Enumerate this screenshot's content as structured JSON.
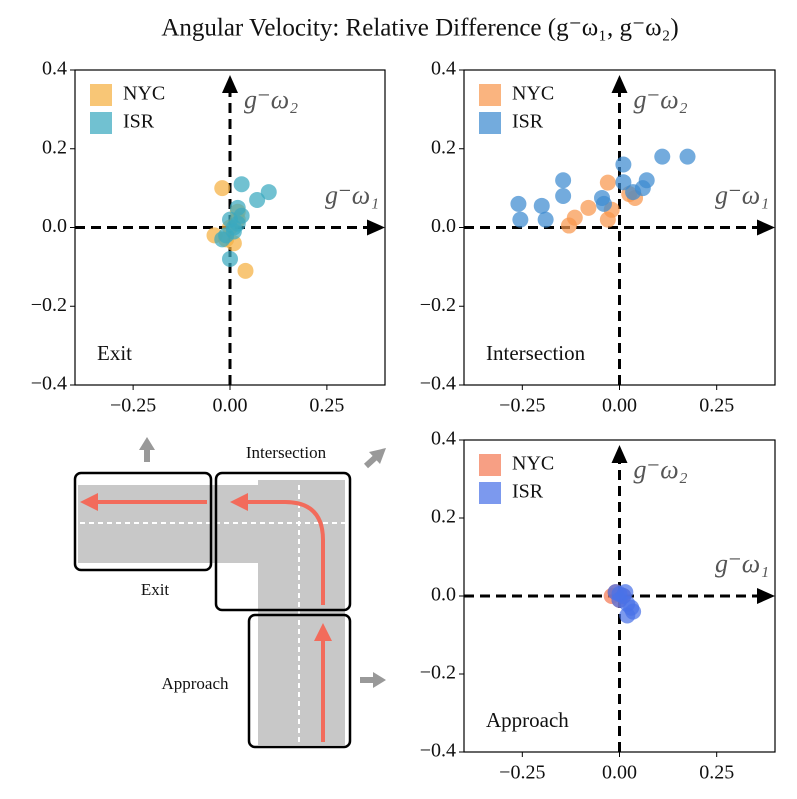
{
  "title": "Angular Velocity: Relative Difference (g⁻ω₁, g⁻ω₂)",
  "chart_data": [
    {
      "type": "scatter",
      "annotation": "Exit",
      "xlabel": "g⁻ω₁",
      "ylabel": "g⁻ω₂",
      "legend": "upper left",
      "xlim": [
        -0.4,
        0.4
      ],
      "ylim": [
        -0.4,
        0.4
      ],
      "xticks": [
        {
          "value": -0.25,
          "label": "−0.25"
        },
        {
          "value": 0,
          "label": "0.00"
        },
        0.25
      ],
      "yticks": [
        {
          "value": -0.4,
          "label": "−0.4"
        },
        {
          "value": -0.2,
          "label": "−0.2"
        },
        {
          "value": 0,
          "label": "0.0"
        },
        0.2,
        0.4
      ],
      "series": [
        {
          "name": "NYC",
          "color": "#f5b041",
          "x": [
            -0.02,
            0.02,
            0.04,
            0.01,
            -0.04,
            0.0,
            0.02,
            -0.01
          ],
          "values": [
            0.1,
            0.04,
            -0.11,
            -0.04,
            -0.02,
            0.0,
            0.02,
            -0.03
          ]
        },
        {
          "name": "ISR",
          "color": "#3aa9bf",
          "x": [
            0.03,
            0.07,
            0.1,
            0.02,
            0.0,
            0.01,
            -0.01,
            0.02,
            0.0,
            0.03,
            -0.02,
            0.01
          ],
          "values": [
            0.11,
            0.07,
            0.09,
            0.05,
            -0.08,
            0.0,
            -0.02,
            0.01,
            0.02,
            0.03,
            -0.03,
            -0.01
          ]
        }
      ]
    },
    {
      "type": "scatter",
      "annotation": "Intersection",
      "xlabel": "g⁻ω₁",
      "ylabel": "g⁻ω₂",
      "legend": "upper left",
      "xlim": [
        -0.4,
        0.4
      ],
      "ylim": [
        -0.4,
        0.4
      ],
      "xticks": [
        {
          "value": -0.25,
          "label": "−0.25"
        },
        {
          "value": 0,
          "label": "0.00"
        },
        0.25
      ],
      "yticks": [
        {
          "value": -0.4,
          "label": "−0.4"
        },
        {
          "value": -0.2,
          "label": "−0.2"
        },
        {
          "value": 0,
          "label": "0.0"
        },
        0.2,
        0.4
      ],
      "series": [
        {
          "name": "NYC",
          "color": "#f8974e",
          "x": [
            -0.03,
            -0.08,
            -0.115,
            -0.13,
            -0.03,
            0.025,
            0.04,
            -0.02
          ],
          "values": [
            0.114,
            0.05,
            0.025,
            0.005,
            0.02,
            0.085,
            0.075,
            0.045
          ]
        },
        {
          "name": "ISR",
          "color": "#3d8bd0",
          "x": [
            -0.26,
            -0.255,
            -0.2,
            -0.19,
            -0.145,
            -0.145,
            -0.045,
            -0.04,
            0.01,
            0.01,
            0.06,
            0.11,
            0.175,
            0.07,
            0.035
          ],
          "values": [
            0.06,
            0.02,
            0.055,
            0.02,
            0.12,
            0.08,
            0.075,
            0.06,
            0.16,
            0.115,
            0.1,
            0.18,
            0.18,
            0.12,
            0.09
          ]
        }
      ]
    },
    {
      "type": "scatter",
      "annotation": "Approach",
      "xlabel": "g⁻ω₁",
      "ylabel": "g⁻ω₂",
      "legend": "upper left",
      "xlim": [
        -0.4,
        0.4
      ],
      "ylim": [
        -0.4,
        0.4
      ],
      "xticks": [
        {
          "value": -0.25,
          "label": "−0.25"
        },
        {
          "value": 0,
          "label": "0.00"
        },
        0.25
      ],
      "yticks": [
        {
          "value": -0.4,
          "label": "−0.4"
        },
        {
          "value": -0.2,
          "label": "−0.2"
        },
        {
          "value": 0,
          "label": "0.0"
        },
        0.2,
        0.4
      ],
      "series": [
        {
          "name": "NYC",
          "color": "#f47a55",
          "x": [
            -0.02,
            -0.01,
            0.0,
            0.01
          ],
          "values": [
            0.0,
            0.01,
            -0.01,
            0.0
          ]
        },
        {
          "name": "ISR",
          "color": "#4a72e8",
          "x": [
            -0.01,
            0.0,
            0.01,
            0.02,
            0.03,
            0.02,
            0.0,
            0.015,
            0.035
          ],
          "values": [
            0.01,
            0.005,
            0.0,
            -0.02,
            -0.03,
            -0.05,
            -0.01,
            0.01,
            -0.04
          ]
        }
      ]
    }
  ],
  "diagram": {
    "intersection": "Intersection",
    "exit": "Exit",
    "approach": "Approach"
  }
}
